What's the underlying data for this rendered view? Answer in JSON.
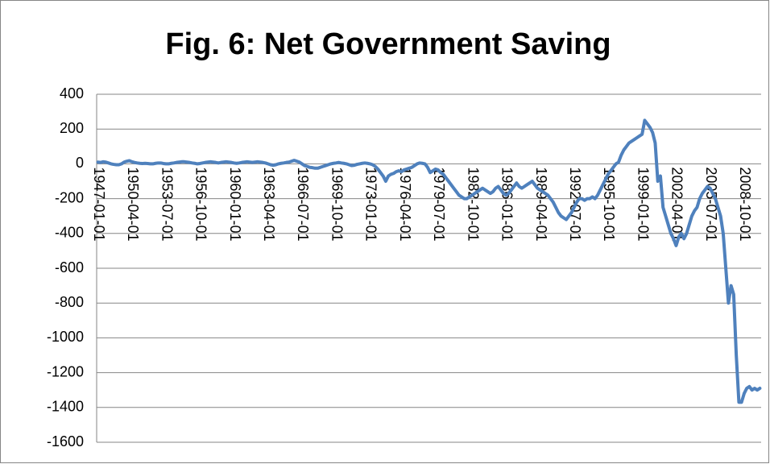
{
  "chart_data": {
    "type": "line",
    "title": "Fig. 6: Net Government Saving",
    "categories": [
      "1947-01-01",
      null,
      null,
      null,
      null,
      null,
      null,
      null,
      null,
      null,
      null,
      null,
      null,
      "1950-04-01",
      null,
      null,
      null,
      null,
      null,
      null,
      null,
      null,
      null,
      null,
      null,
      null,
      "1953-07-01",
      null,
      null,
      null,
      null,
      null,
      null,
      null,
      null,
      null,
      null,
      null,
      null,
      "1956-10-01",
      null,
      null,
      null,
      null,
      null,
      null,
      null,
      null,
      null,
      null,
      null,
      null,
      "1960-01-01",
      null,
      null,
      null,
      null,
      null,
      null,
      null,
      null,
      null,
      null,
      null,
      null,
      "1963-04-01",
      null,
      null,
      null,
      null,
      null,
      null,
      null,
      null,
      null,
      null,
      null,
      null,
      "1966-07-01",
      null,
      null,
      null,
      null,
      null,
      null,
      null,
      null,
      null,
      null,
      null,
      null,
      "1969-10-01",
      null,
      null,
      null,
      null,
      null,
      null,
      null,
      null,
      null,
      null,
      null,
      null,
      "1973-01-01",
      null,
      null,
      null,
      null,
      null,
      null,
      null,
      null,
      null,
      null,
      null,
      null,
      "1976-04-01",
      null,
      null,
      null,
      null,
      null,
      null,
      null,
      null,
      null,
      null,
      null,
      null,
      "1979-07-01",
      null,
      null,
      null,
      null,
      null,
      null,
      null,
      null,
      null,
      null,
      null,
      null,
      "1982-10-01",
      null,
      null,
      null,
      null,
      null,
      null,
      null,
      null,
      null,
      null,
      null,
      null,
      "1986-01-01",
      null,
      null,
      null,
      null,
      null,
      null,
      null,
      null,
      null,
      null,
      null,
      null,
      "1989-04-01",
      null,
      null,
      null,
      null,
      null,
      null,
      null,
      null,
      null,
      null,
      null,
      null,
      "1992-07-01",
      null,
      null,
      null,
      null,
      null,
      null,
      null,
      null,
      null,
      null,
      null,
      null,
      "1995-10-01",
      null,
      null,
      null,
      null,
      null,
      null,
      null,
      null,
      null,
      null,
      null,
      null,
      "1999-01-01",
      null,
      null,
      null,
      null,
      null,
      null,
      null,
      null,
      null,
      null,
      null,
      null,
      "2002-04-01",
      null,
      null,
      null,
      null,
      null,
      null,
      null,
      null,
      null,
      null,
      null,
      null,
      "2005-07-01",
      null,
      null,
      null,
      null,
      null,
      null,
      null,
      null,
      null,
      null,
      null,
      null,
      "2008-10-01",
      null,
      null,
      null,
      null,
      null,
      null
    ],
    "values": [
      10,
      8,
      12,
      10,
      5,
      0,
      -3,
      -5,
      -5,
      0,
      10,
      15,
      18,
      12,
      8,
      5,
      3,
      2,
      3,
      2,
      0,
      0,
      3,
      5,
      5,
      2,
      0,
      0,
      3,
      5,
      8,
      10,
      12,
      12,
      10,
      8,
      5,
      3,
      0,
      2,
      5,
      8,
      10,
      12,
      10,
      8,
      5,
      8,
      10,
      12,
      10,
      8,
      5,
      3,
      5,
      8,
      10,
      12,
      10,
      8,
      10,
      12,
      10,
      8,
      5,
      0,
      -5,
      -8,
      -5,
      0,
      3,
      5,
      8,
      10,
      15,
      20,
      15,
      10,
      0,
      -10,
      -15,
      -20,
      -22,
      -25,
      -25,
      -20,
      -15,
      -10,
      -5,
      0,
      3,
      5,
      8,
      5,
      3,
      0,
      -5,
      -10,
      -8,
      -3,
      0,
      3,
      5,
      3,
      0,
      -5,
      -15,
      -30,
      -50,
      -70,
      -100,
      -70,
      -60,
      -55,
      -45,
      -40,
      -45,
      -35,
      -30,
      -25,
      -20,
      -10,
      0,
      5,
      3,
      0,
      -20,
      -50,
      -40,
      -30,
      -35,
      -50,
      -60,
      -80,
      -100,
      -120,
      -140,
      -160,
      -180,
      -190,
      -200,
      -200,
      -190,
      -180,
      -170,
      -160,
      -150,
      -140,
      -150,
      -160,
      -170,
      -160,
      -140,
      -130,
      -150,
      -170,
      -180,
      -170,
      -150,
      -130,
      -110,
      -130,
      -140,
      -130,
      -120,
      -110,
      -100,
      -120,
      -140,
      -150,
      -160,
      -170,
      -180,
      -200,
      -220,
      -250,
      -280,
      -300,
      -310,
      -320,
      -300,
      -280,
      -250,
      -220,
      -200,
      -200,
      -210,
      -200,
      -200,
      -190,
      -200,
      -180,
      -150,
      -120,
      -90,
      -60,
      -40,
      -20,
      0,
      10,
      50,
      80,
      100,
      120,
      130,
      140,
      150,
      160,
      170,
      250,
      230,
      210,
      180,
      120,
      -100,
      -70,
      -250,
      -300,
      -350,
      -400,
      -430,
      -470,
      -420,
      -400,
      -430,
      -400,
      -350,
      -300,
      -270,
      -250,
      -200,
      -170,
      -150,
      -130,
      -140,
      -170,
      -200,
      -250,
      -300,
      -400,
      -600,
      -800,
      -700,
      -750,
      -1100,
      -1370,
      -1370,
      -1320,
      -1290,
      -1280,
      -1300,
      -1290,
      -1300,
      -1290
    ],
    "color": "#4f81bd",
    "ylim": [
      -1600,
      400
    ],
    "yticks": [
      -1600,
      -1400,
      -1200,
      -1000,
      -800,
      -600,
      -400,
      -200,
      0,
      200,
      400
    ],
    "grid": true
  }
}
